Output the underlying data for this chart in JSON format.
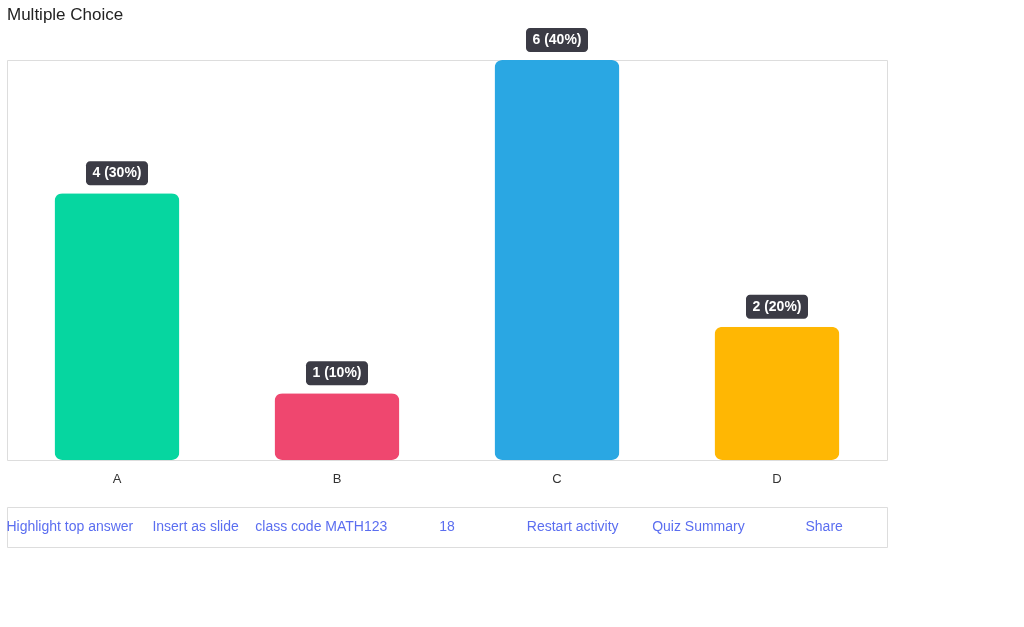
{
  "chart_data": {
    "type": "bar",
    "title": "Multiple Choice",
    "categories": [
      "A",
      "B",
      "C",
      "D"
    ],
    "values": [
      4,
      1,
      6,
      2
    ],
    "colors": [
      "#06d6a0",
      "#ef476f",
      "#2aa7e3",
      "#ffb703"
    ],
    "value_labels": [
      "4 (30%)",
      "1 (10%)",
      "6 (40%)",
      "2 (20%)"
    ],
    "grid": false,
    "legend": false,
    "annotations": [
      "Highlight top answer",
      "Insert as slide",
      "class code MATH123",
      "18",
      "Restart activity",
      "Quiz Summary",
      "Share"
    ]
  }
}
